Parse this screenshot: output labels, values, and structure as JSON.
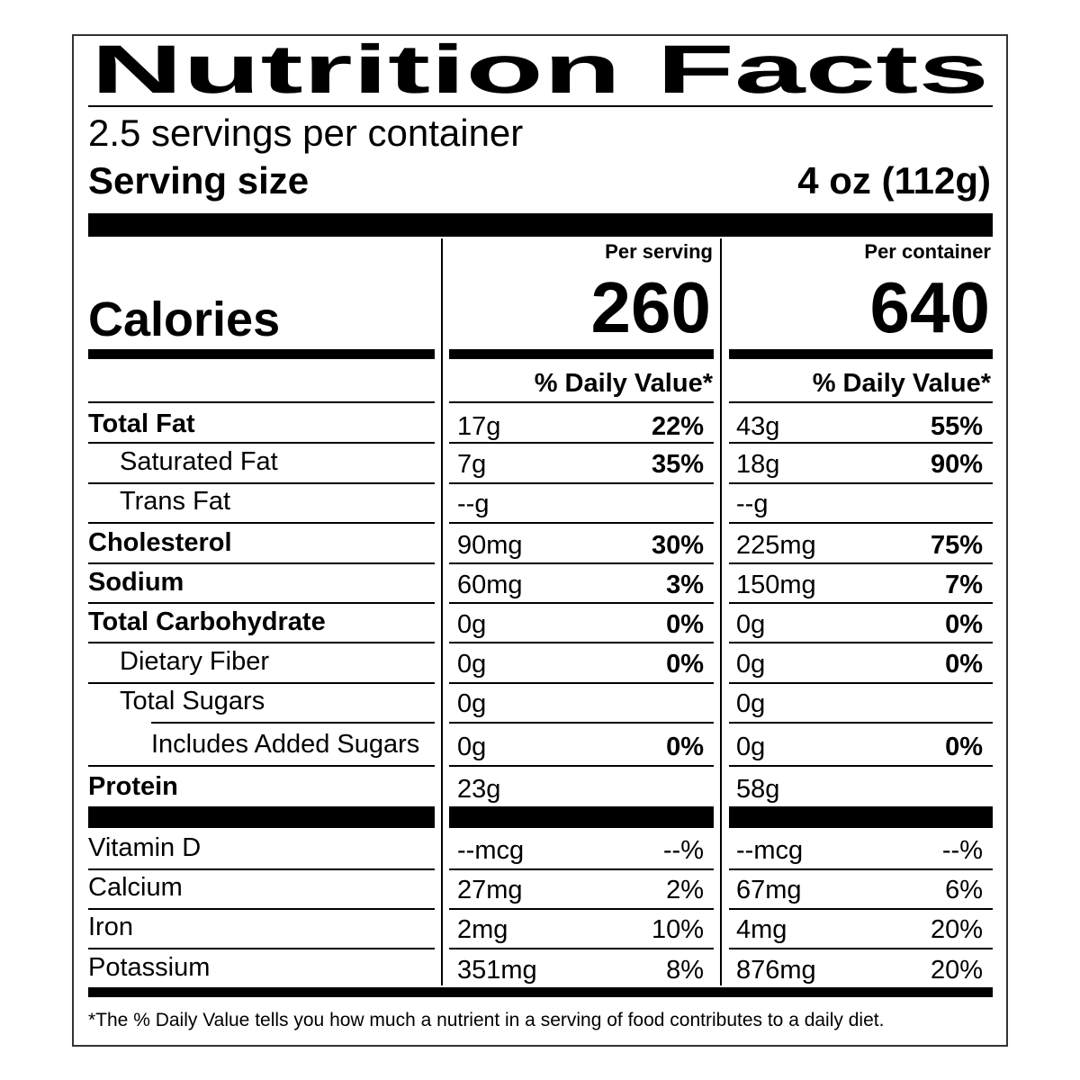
{
  "title": "Nutrition Facts",
  "servings": "2.5 servings per container",
  "serving_size_label": "Serving size",
  "serving_size": "4 oz (112g)",
  "columns": [
    "Per serving",
    "Per container"
  ],
  "calories_label": "Calories",
  "calories": [
    "260",
    "640"
  ],
  "dv_header": "% Daily Value*",
  "nutrients": [
    {
      "name": "Total Fat",
      "values": [
        [
          "17g",
          "22%"
        ],
        [
          "43g",
          "55%"
        ]
      ]
    },
    {
      "name": "Saturated Fat",
      "values": [
        [
          "7g",
          "35%"
        ],
        [
          "18g",
          "90%"
        ]
      ]
    },
    {
      "name": "Trans Fat",
      "values": [
        [
          "--g"
        ],
        [
          "--g"
        ]
      ]
    },
    {
      "name": "Cholesterol",
      "values": [
        [
          "90mg",
          "30%"
        ],
        [
          "225mg",
          "75%"
        ]
      ]
    },
    {
      "name": "Sodium",
      "values": [
        [
          "60mg",
          "3%"
        ],
        [
          "150mg",
          "7%"
        ]
      ]
    },
    {
      "name": "Total Carbohydrate",
      "values": [
        [
          "0g",
          "0%"
        ],
        [
          "0g",
          "0%"
        ]
      ]
    },
    {
      "name": "Dietary Fiber",
      "values": [
        [
          "0g",
          "0%"
        ],
        [
          "0g",
          "0%"
        ]
      ]
    },
    {
      "name": "Total Sugars",
      "values": [
        [
          "0g"
        ],
        [
          "0g"
        ]
      ]
    },
    {
      "name": "Includes Added Sugars",
      "values": [
        [
          "0g",
          "0%"
        ],
        [
          "0g",
          "0%"
        ]
      ]
    },
    {
      "name": "Protein",
      "values": [
        [
          "23g"
        ],
        [
          "58g"
        ]
      ]
    }
  ],
  "vitamins": [
    {
      "name": "Vitamin D",
      "values": [
        [
          "--mcg",
          "--%"
        ],
        [
          "--mcg",
          "--%"
        ]
      ]
    },
    {
      "name": "Calcium",
      "values": [
        [
          "27mg",
          "2%"
        ],
        [
          "67mg",
          "6%"
        ]
      ]
    },
    {
      "name": "Iron",
      "values": [
        [
          "2mg",
          "10%"
        ],
        [
          "4mg",
          "20%"
        ]
      ]
    },
    {
      "name": "Potassium",
      "values": [
        [
          "351mg",
          "8%"
        ],
        [
          "876mg",
          "20%"
        ]
      ]
    }
  ],
  "footnote": "*The % Daily Value tells you how much a nutrient in a serving of food contributes to a daily diet."
}
